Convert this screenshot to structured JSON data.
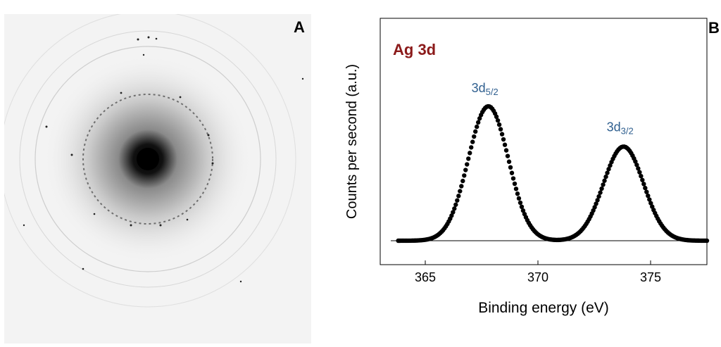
{
  "panels": {
    "a": {
      "letter": "A"
    },
    "b": {
      "letter": "B"
    }
  },
  "chart_data": {
    "type": "scatter",
    "title": "Ag 3d",
    "xlabel": "Binding energy (eV)",
    "ylabel": "Counts per second (a.u.)",
    "xlim": [
      363,
      377.5
    ],
    "ylim": [
      0,
      1.1
    ],
    "x_ticks": [
      365,
      370,
      375
    ],
    "x_tick_labels": [
      "365",
      "370",
      "375"
    ],
    "y_ticks": [],
    "grid": false,
    "colors": {
      "points": "#000000",
      "title": "#8b1a1a",
      "annotation": "#2f5f8f"
    },
    "annotations": [
      {
        "base": "3d",
        "sub": "5/2",
        "x": 367.8,
        "y": 1.0
      },
      {
        "base": "3d",
        "sub": "3/2",
        "x": 373.8,
        "y": 0.71
      }
    ],
    "peaks": [
      {
        "center": 367.8,
        "height": 1.0,
        "fwhm": 2.1
      },
      {
        "center": 373.8,
        "height": 0.7,
        "fwhm": 2.1
      }
    ],
    "baseline": 0.0
  }
}
